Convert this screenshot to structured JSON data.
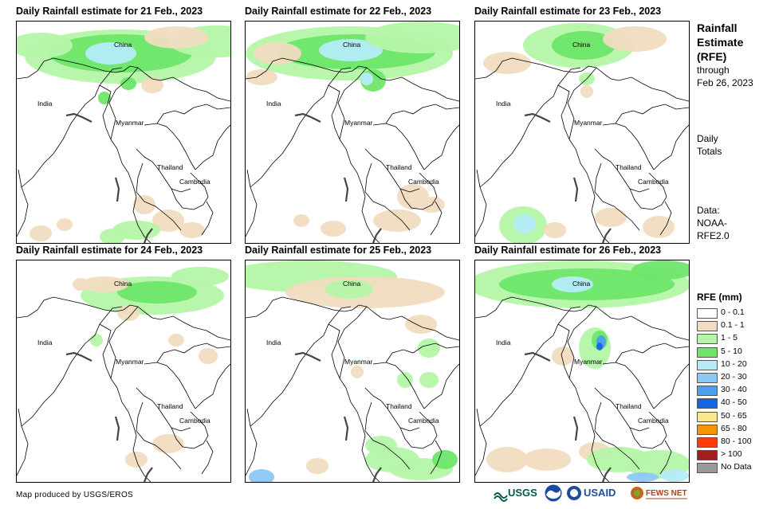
{
  "panels": [
    {
      "title": "Daily Rainfall estimate for 21 Feb., 2023",
      "rain": "d21"
    },
    {
      "title": "Daily Rainfall estimate for 22 Feb., 2023",
      "rain": "d22"
    },
    {
      "title": "Daily Rainfall estimate for 23 Feb., 2023",
      "rain": "d23"
    },
    {
      "title": "Daily Rainfall estimate for 24 Feb., 2023",
      "rain": "d24"
    },
    {
      "title": "Daily Rainfall estimate for 25 Feb., 2023",
      "rain": "d25"
    },
    {
      "title": "Daily Rainfall estimate for 26 Feb., 2023",
      "rain": "d26"
    }
  ],
  "place_labels": {
    "china": "China",
    "india": "India",
    "myanmar": "Myanmar",
    "thailand": "Thailand",
    "cambodia": "Cambodia"
  },
  "side": {
    "title_1": "Rainfall",
    "title_2": "Estimate",
    "title_3": "(RFE)",
    "through_1": "through",
    "through_2": "Feb 26, 2023",
    "daily_1": "Daily",
    "daily_2": "Totals",
    "data_1": "Data:",
    "data_2": "NOAA-",
    "data_3": "RFE2.0"
  },
  "legend": {
    "title": "RFE (mm)",
    "items": [
      {
        "label": "0 - 0.1",
        "color": "#ffffff"
      },
      {
        "label": "0.1 - 1",
        "color": "#f0dcc0"
      },
      {
        "label": "1 - 5",
        "color": "#b4f5a8"
      },
      {
        "label": "5 - 10",
        "color": "#6ee66a"
      },
      {
        "label": "10 - 20",
        "color": "#b4ecf8"
      },
      {
        "label": "20 - 30",
        "color": "#8cc8f5"
      },
      {
        "label": "30 - 40",
        "color": "#4b9ef0"
      },
      {
        "label": "40 - 50",
        "color": "#1464e6"
      },
      {
        "label": "50 - 65",
        "color": "#fae68c"
      },
      {
        "label": "65 - 80",
        "color": "#f59600"
      },
      {
        "label": "80 - 100",
        "color": "#ff3c0a"
      },
      {
        "label": "> 100",
        "color": "#a01e1e"
      },
      {
        "label": "No Data",
        "color": "#999999"
      }
    ]
  },
  "footer": {
    "credit": "Map produced by USGS/EROS"
  },
  "logos": {
    "usgs": "USGS",
    "usaid": "USAID",
    "fewsnet": "FEWS NET"
  }
}
